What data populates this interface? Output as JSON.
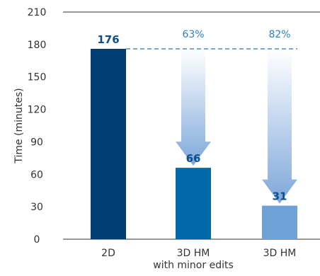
{
  "chart_data": {
    "type": "bar",
    "ylabel": "Time (minutes)",
    "ylim": [
      0,
      210
    ],
    "yticks": [
      0,
      30,
      60,
      90,
      120,
      150,
      180,
      210
    ],
    "categories": [
      {
        "lines": [
          "2D"
        ]
      },
      {
        "lines": [
          "3D HM",
          "with minor edits"
        ]
      },
      {
        "lines": [
          "3D HM"
        ]
      }
    ],
    "values": [
      176,
      66,
      31
    ],
    "value_labels": [
      "176",
      "66",
      "31"
    ],
    "bar_colors": [
      "#003e74",
      "#0068a6",
      "#6ea2d6"
    ],
    "value_label_color": "#0c4f8a",
    "reference_line": {
      "value": 176,
      "color": "#2a72b0",
      "style": "dashed"
    },
    "reduction_labels": [
      "",
      "63%",
      "82%"
    ],
    "reduction_label_color": "#2d7fc1",
    "arrow_gradient": [
      "#ffffff",
      "#7ea7da"
    ],
    "grid": false
  }
}
